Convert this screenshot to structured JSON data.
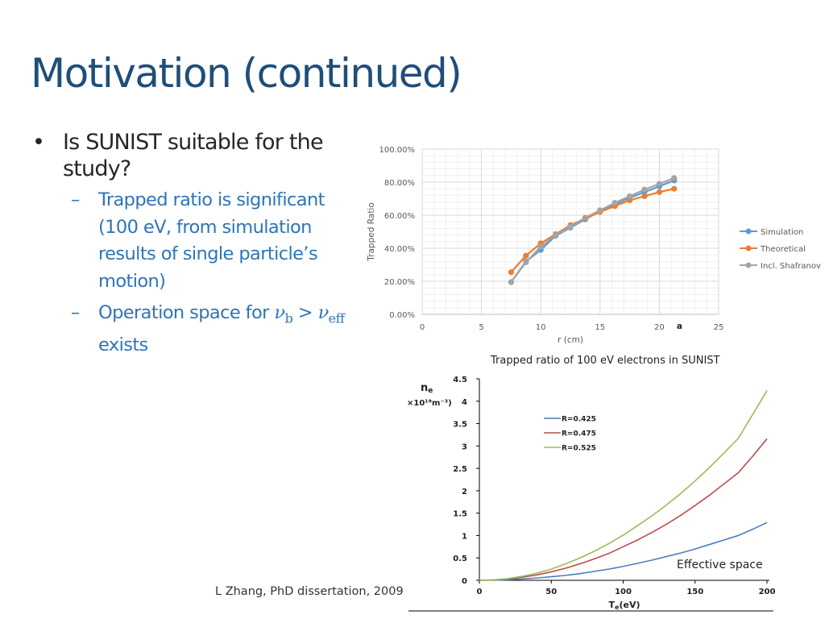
{
  "slide": {
    "title": "Motivation (continued)",
    "bullet": {
      "marker": "•",
      "text": "Is SUNIST suitable for the study?"
    },
    "subbullets": [
      {
        "marker": "–",
        "text": "Trapped ratio is significant (100 eV, from simulation results of single particle’s motion)"
      },
      {
        "marker": "–",
        "prefix": "Operation space for ",
        "nu": "ν",
        "sub1": "b",
        "gt": " > ",
        "sub2": "eff",
        "suffix": " exists"
      }
    ],
    "citation": "L Zhang, PhD dissertation, 2009"
  },
  "chart_data": [
    {
      "type": "line",
      "caption": "Trapped ratio of 100 eV electrons in SUNIST",
      "xlabel": "r (cm)",
      "ylabel": "Trapped Ratio",
      "xlim": [
        0,
        25
      ],
      "ylim": [
        0,
        1
      ],
      "xticks": [
        "0",
        "5",
        "10",
        "15",
        "20",
        "25"
      ],
      "yticks": [
        "0.00%",
        "20.00%",
        "40.00%",
        "60.00%",
        "80.00%",
        "100.00%"
      ],
      "annotation": "a",
      "grid": true,
      "legend_position": "right",
      "x": [
        7.5,
        8.75,
        10,
        11.25,
        12.5,
        13.75,
        15,
        16.25,
        17.5,
        18.75,
        20,
        21.25
      ],
      "series": [
        {
          "name": "Simulation",
          "color": "#5b9bd5",
          "values": [
            0.195,
            0.32,
            0.39,
            0.475,
            0.525,
            0.575,
            0.625,
            0.665,
            0.705,
            0.74,
            0.775,
            0.81
          ]
        },
        {
          "name": "Theoretical",
          "color": "#ed7d31",
          "values": [
            0.255,
            0.355,
            0.43,
            0.485,
            0.54,
            0.58,
            0.62,
            0.655,
            0.69,
            0.715,
            0.74,
            0.76
          ]
        },
        {
          "name": "Incl. Shafranov",
          "color": "#a5a5a5",
          "values": [
            0.195,
            0.315,
            0.41,
            0.48,
            0.53,
            0.585,
            0.63,
            0.675,
            0.715,
            0.755,
            0.79,
            0.825
          ]
        }
      ]
    },
    {
      "type": "line",
      "ylabel_main": "n",
      "ylabel_sub": "e",
      "ylabel_unit": "×10¹⁹m⁻³)",
      "xlabel_main": "T",
      "xlabel_sub": "e",
      "xlabel_unit": "(eV)",
      "xlim": [
        0,
        200
      ],
      "ylim": [
        0,
        4.5
      ],
      "xticks": [
        "0",
        "50",
        "100",
        "150",
        "200"
      ],
      "yticks": [
        "0",
        "0.5",
        "1",
        "1.5",
        "2",
        "2.5",
        "3",
        "3.5",
        "4",
        "4.5"
      ],
      "annotation": "Effective space",
      "legend_position": "top-left",
      "x": [
        0,
        10,
        20,
        30,
        40,
        50,
        60,
        70,
        80,
        90,
        100,
        110,
        120,
        130,
        140,
        150,
        160,
        170,
        180,
        190,
        200
      ],
      "series": [
        {
          "name": "R=0.425",
          "color": "#4a7ebb",
          "values": [
            0,
            0.003,
            0.013,
            0.03,
            0.052,
            0.08,
            0.11,
            0.15,
            0.2,
            0.25,
            0.31,
            0.38,
            0.45,
            0.53,
            0.61,
            0.7,
            0.8,
            0.9,
            1.0,
            1.14,
            1.29
          ]
        },
        {
          "name": "R=0.475",
          "color": "#be4b48",
          "values": [
            0,
            0.008,
            0.03,
            0.07,
            0.12,
            0.19,
            0.27,
            0.37,
            0.48,
            0.6,
            0.75,
            0.9,
            1.07,
            1.25,
            1.45,
            1.67,
            1.9,
            2.15,
            2.4,
            2.77,
            3.16
          ]
        },
        {
          "name": "R=0.525",
          "color": "#9bbb59",
          "values": [
            0,
            0.01,
            0.04,
            0.09,
            0.16,
            0.25,
            0.37,
            0.5,
            0.65,
            0.82,
            1.01,
            1.22,
            1.44,
            1.68,
            1.94,
            2.22,
            2.52,
            2.84,
            3.17,
            3.7,
            4.24
          ]
        }
      ]
    }
  ]
}
